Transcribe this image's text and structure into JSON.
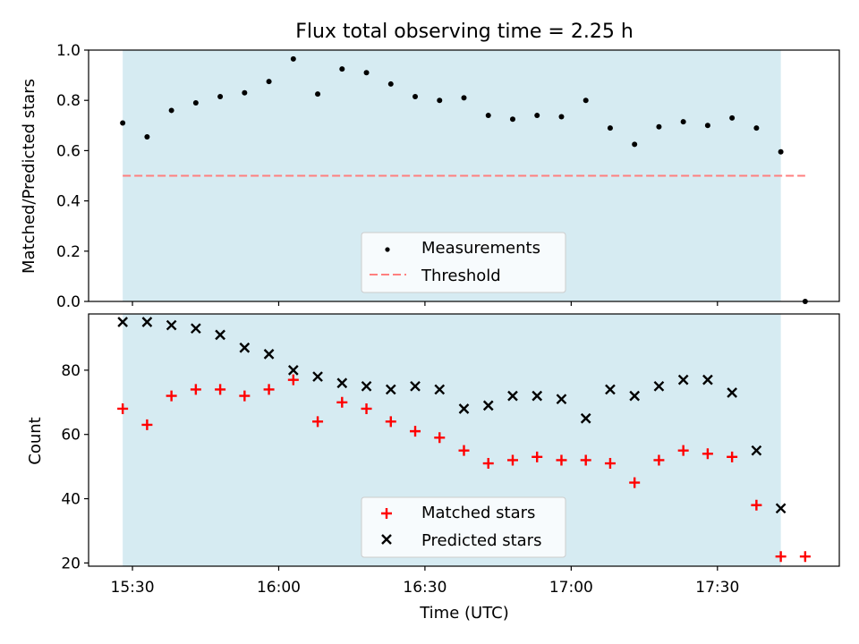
{
  "title": "Flux total observing time = 2.25 h",
  "xlabel": "Time (UTC)",
  "x_ticks": [
    "15:30",
    "16:00",
    "16:30",
    "17:00",
    "17:30"
  ],
  "colors": {
    "shade": "#add8e6",
    "measurement": "#000000",
    "threshold": "#ff7f7f",
    "matched": "#ff0000",
    "predicted": "#000000"
  },
  "chart_data": [
    {
      "type": "scatter",
      "ylabel": "Matched/Predicted stars",
      "ylim": [
        0,
        1.0
      ],
      "xlim": [
        "15:21",
        "17:55"
      ],
      "y_ticks": [
        "0.0",
        "0.2",
        "0.4",
        "0.6",
        "0.8",
        "1.0"
      ],
      "shaded_span": [
        "15:28",
        "17:43"
      ],
      "threshold": {
        "label": "Threshold",
        "value": 0.5,
        "from": "15:28",
        "to": "17:48"
      },
      "legend_position": "lower-center",
      "series": [
        {
          "name": "Measurements",
          "x": [
            "15:28",
            "15:33",
            "15:38",
            "15:43",
            "15:48",
            "15:53",
            "15:58",
            "16:03",
            "16:08",
            "16:13",
            "16:18",
            "16:23",
            "16:28",
            "16:33",
            "16:38",
            "16:43",
            "16:48",
            "16:53",
            "16:58",
            "17:03",
            "17:08",
            "17:13",
            "17:18",
            "17:23",
            "17:28",
            "17:33",
            "17:38",
            "17:43",
            "17:48"
          ],
          "y": [
            0.71,
            0.655,
            0.76,
            0.79,
            0.815,
            0.83,
            0.875,
            0.965,
            0.825,
            0.925,
            0.91,
            0.865,
            0.815,
            0.8,
            0.81,
            0.74,
            0.725,
            0.74,
            0.735,
            0.8,
            0.69,
            0.625,
            0.695,
            0.715,
            0.7,
            0.73,
            0.69,
            0.595,
            0.0
          ]
        }
      ]
    },
    {
      "type": "scatter",
      "ylabel": "Count",
      "ylim": [
        19,
        97.5
      ],
      "xlim": [
        "15:21",
        "17:55"
      ],
      "y_ticks": [
        "20",
        "40",
        "60",
        "80"
      ],
      "shaded_span": [
        "15:28",
        "17:43"
      ],
      "legend_position": "lower-center",
      "series": [
        {
          "name": "Matched stars",
          "x": [
            "15:28",
            "15:33",
            "15:38",
            "15:43",
            "15:48",
            "15:53",
            "15:58",
            "16:03",
            "16:08",
            "16:13",
            "16:18",
            "16:23",
            "16:28",
            "16:33",
            "16:38",
            "16:43",
            "16:48",
            "16:53",
            "16:58",
            "17:03",
            "17:08",
            "17:13",
            "17:18",
            "17:23",
            "17:28",
            "17:33",
            "17:38",
            "17:43",
            "17:48"
          ],
          "y": [
            68,
            63,
            72,
            74,
            74,
            72,
            74,
            77,
            64,
            70,
            68,
            64,
            61,
            59,
            55,
            51,
            52,
            53,
            52,
            52,
            51,
            45,
            52,
            55,
            54,
            53,
            38,
            22,
            22
          ]
        },
        {
          "name": "Predicted stars",
          "x": [
            "15:28",
            "15:33",
            "15:38",
            "15:43",
            "15:48",
            "15:53",
            "15:58",
            "16:03",
            "16:08",
            "16:13",
            "16:18",
            "16:23",
            "16:28",
            "16:33",
            "16:38",
            "16:43",
            "16:48",
            "16:53",
            "16:58",
            "17:03",
            "17:08",
            "17:13",
            "17:18",
            "17:23",
            "17:28",
            "17:33",
            "17:38",
            "17:43"
          ],
          "y": [
            95,
            95,
            94,
            93,
            91,
            87,
            85,
            80,
            78,
            76,
            75,
            74,
            75,
            74,
            68,
            69,
            72,
            72,
            71,
            65,
            74,
            72,
            75,
            77,
            77,
            73,
            55,
            37
          ]
        }
      ]
    }
  ]
}
